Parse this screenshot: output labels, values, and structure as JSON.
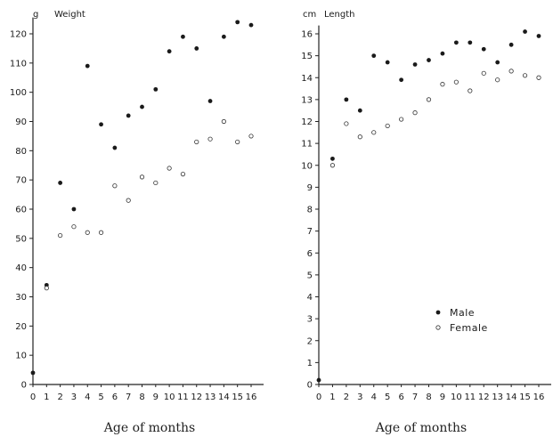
{
  "chart_data": [
    {
      "type": "scatter",
      "ylabel": "Weight",
      "yunit": "g",
      "xlabel": "Age of months",
      "xlim": [
        0,
        16
      ],
      "ylim": [
        0,
        125
      ],
      "xticks": [
        0,
        1,
        2,
        3,
        4,
        5,
        6,
        7,
        8,
        9,
        10,
        11,
        12,
        13,
        14,
        15,
        16
      ],
      "yticks": [
        0,
        10,
        20,
        30,
        40,
        50,
        60,
        70,
        80,
        90,
        100,
        110,
        120
      ],
      "series": [
        {
          "name": "Male",
          "marker": "filled",
          "points": [
            [
              0,
              4
            ],
            [
              1,
              34
            ],
            [
              2,
              69
            ],
            [
              3,
              60
            ],
            [
              4,
              109
            ],
            [
              5,
              89
            ],
            [
              6,
              81
            ],
            [
              7,
              92
            ],
            [
              8,
              95
            ],
            [
              9,
              101
            ],
            [
              10,
              114
            ],
            [
              11,
              119
            ],
            [
              12,
              115
            ],
            [
              13,
              97
            ],
            [
              14,
              119
            ],
            [
              15,
              124
            ],
            [
              16,
              123
            ]
          ]
        },
        {
          "name": "Female",
          "marker": "open",
          "points": [
            [
              1,
              33
            ],
            [
              2,
              51
            ],
            [
              3,
              54
            ],
            [
              4,
              52
            ],
            [
              5,
              52
            ],
            [
              6,
              68
            ],
            [
              7,
              63
            ],
            [
              8,
              71
            ],
            [
              9,
              69
            ],
            [
              10,
              74
            ],
            [
              11,
              72
            ],
            [
              12,
              83
            ],
            [
              13,
              84
            ],
            [
              14,
              90
            ],
            [
              15,
              83
            ],
            [
              16,
              85
            ]
          ]
        }
      ]
    },
    {
      "type": "scatter",
      "ylabel": "Length",
      "yunit": "cm",
      "xlabel": "Age of months",
      "xlim": [
        0,
        16
      ],
      "ylim": [
        0,
        16.3
      ],
      "xticks": [
        0,
        1,
        2,
        3,
        4,
        5,
        6,
        7,
        8,
        9,
        10,
        11,
        12,
        13,
        14,
        15,
        16
      ],
      "yticks": [
        0,
        1,
        2,
        3,
        4,
        5,
        6,
        7,
        8,
        9,
        10,
        11,
        12,
        13,
        14,
        15,
        16
      ],
      "legend": {
        "position": "center-right",
        "entries": [
          "Male",
          "Female"
        ]
      },
      "series": [
        {
          "name": "Male",
          "marker": "filled",
          "points": [
            [
              0,
              0.2
            ],
            [
              1,
              10.3
            ],
            [
              2,
              13
            ],
            [
              3,
              12.5
            ],
            [
              4,
              15
            ],
            [
              5,
              14.7
            ],
            [
              6,
              13.9
            ],
            [
              7,
              14.6
            ],
            [
              8,
              14.8
            ],
            [
              9,
              15.1
            ],
            [
              10,
              15.6
            ],
            [
              11,
              15.6
            ],
            [
              12,
              15.3
            ],
            [
              13,
              14.7
            ],
            [
              14,
              15.5
            ],
            [
              15,
              16.1
            ],
            [
              16,
              15.9
            ]
          ]
        },
        {
          "name": "Female",
          "marker": "open",
          "points": [
            [
              1,
              10
            ],
            [
              2,
              11.9
            ],
            [
              3,
              11.3
            ],
            [
              4,
              11.5
            ],
            [
              5,
              11.8
            ],
            [
              6,
              12.1
            ],
            [
              7,
              12.4
            ],
            [
              8,
              13
            ],
            [
              9,
              13.7
            ],
            [
              10,
              13.8
            ],
            [
              11,
              13.4
            ],
            [
              12,
              14.2
            ],
            [
              13,
              13.9
            ],
            [
              14,
              14.3
            ],
            [
              15,
              14.1
            ],
            [
              16,
              14
            ]
          ]
        }
      ]
    }
  ]
}
